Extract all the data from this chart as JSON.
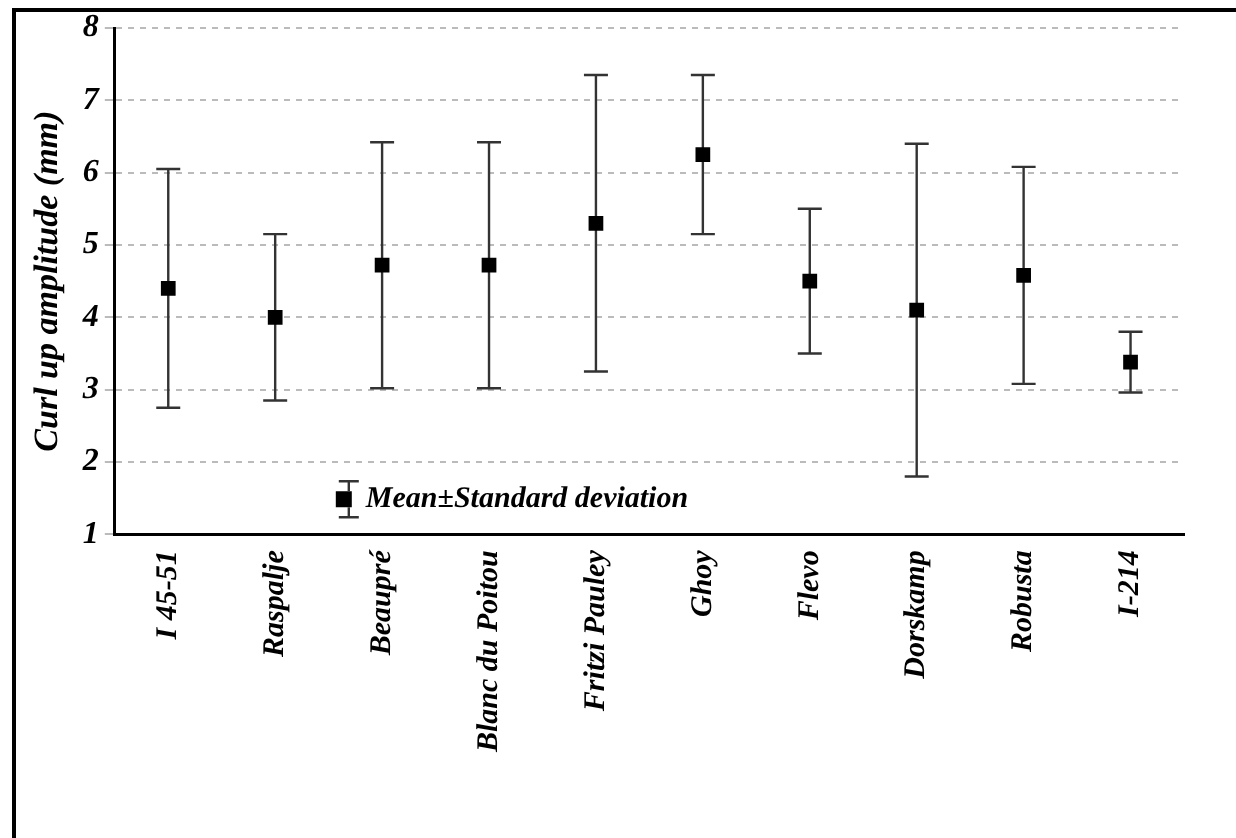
{
  "chart_data": {
    "type": "scatter",
    "ylabel": "Curl up amplitude (mm)",
    "categories": [
      "I 45-51",
      "Raspalje",
      "Beaupré",
      "Blanc du Poitou",
      "Fritzi Pauley",
      "Ghoy",
      "Flevo",
      "Dorskamp",
      "Robusta",
      "I-214"
    ],
    "series": [
      {
        "name": "Mean±Standard deviation",
        "color": "#000000",
        "values": [
          4.4,
          4.0,
          4.72,
          4.72,
          5.3,
          6.25,
          4.5,
          4.1,
          4.58,
          3.38
        ],
        "errors": [
          1.65,
          1.15,
          1.7,
          1.7,
          2.05,
          1.1,
          1.0,
          2.3,
          1.5,
          0.42
        ]
      }
    ],
    "ylim": [
      1,
      8
    ],
    "yticks": [
      1,
      2,
      3,
      4,
      5,
      6,
      7,
      8
    ],
    "grid": "y",
    "legend": "bottom left",
    "marker": "square"
  }
}
